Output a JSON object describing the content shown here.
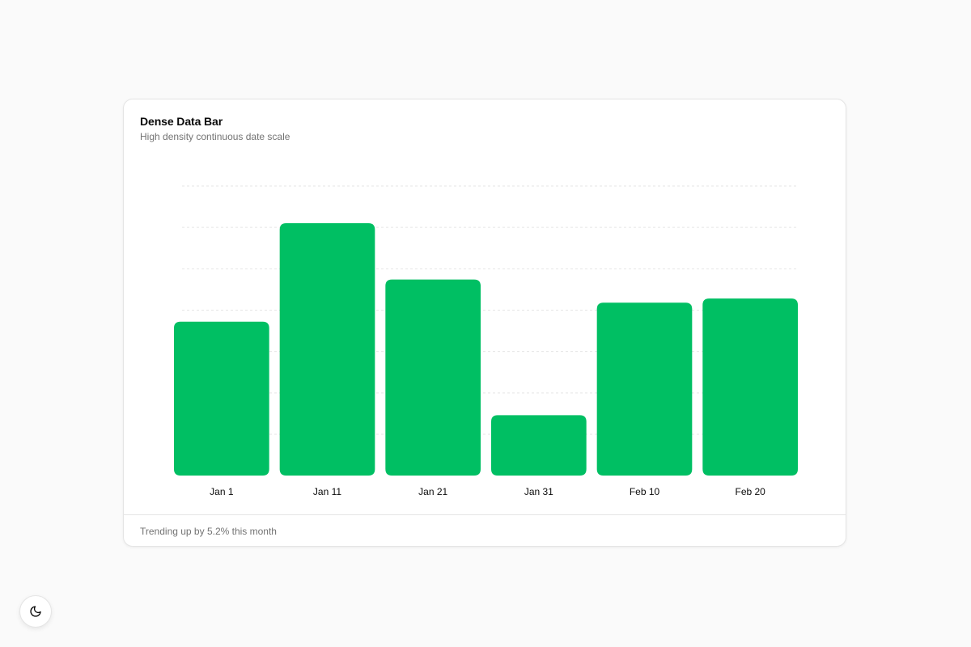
{
  "card": {
    "title": "Dense Data Bar",
    "subtitle": "High density continuous date scale",
    "footer": "Trending up by 5.2% this month"
  },
  "theme_toggle": {
    "icon": "moon-icon"
  },
  "colors": {
    "bar": "#00bf63",
    "grid": "#e5e5e5",
    "background": "#fafafa",
    "card": "#ffffff"
  },
  "chart_data": {
    "type": "bar",
    "title": "Dense Data Bar",
    "subtitle": "High density continuous date scale",
    "categories": [
      "Jan 1",
      "Jan 11",
      "Jan 21",
      "Jan 31",
      "Feb 10",
      "Feb 20"
    ],
    "values": [
      186,
      305,
      237,
      73,
      209,
      214
    ],
    "ylim": [
      0,
      350
    ],
    "grid": true,
    "grid_style": "dashed-horizontal",
    "y_axis_visible": false
  }
}
